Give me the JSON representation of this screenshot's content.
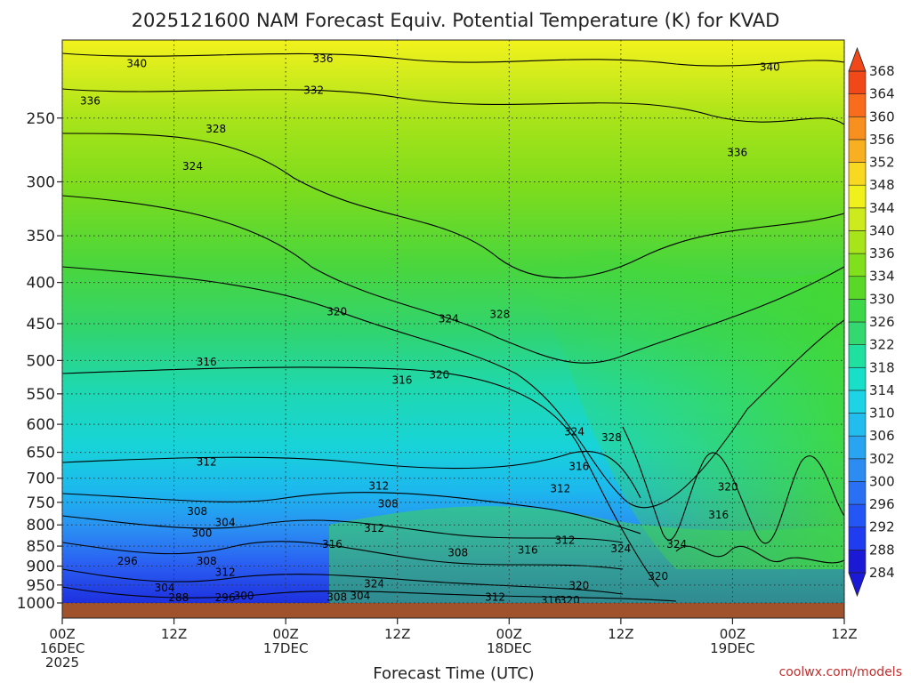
{
  "chart_data": {
    "type": "heatmap",
    "title": "2025121600 NAM Forecast Equiv. Potential Temperature (K) for KVAD",
    "xlabel": "Forecast Time (UTC)",
    "ylabel": "",
    "credit": "coolwx.com/models",
    "x_ticks": [
      {
        "hour": 0,
        "lines": [
          "00Z",
          "16DEC",
          "2025"
        ]
      },
      {
        "hour": 12,
        "lines": [
          "12Z"
        ]
      },
      {
        "hour": 24,
        "lines": [
          "00Z",
          "17DEC"
        ]
      },
      {
        "hour": 36,
        "lines": [
          "12Z"
        ]
      },
      {
        "hour": 48,
        "lines": [
          "00Z",
          "18DEC"
        ]
      },
      {
        "hour": 60,
        "lines": [
          "12Z"
        ]
      },
      {
        "hour": 72,
        "lines": [
          "00Z",
          "19DEC"
        ]
      },
      {
        "hour": 84,
        "lines": [
          "12Z"
        ]
      }
    ],
    "xlim": [
      0,
      84
    ],
    "y_ticks": [
      250,
      300,
      350,
      400,
      450,
      500,
      550,
      600,
      650,
      700,
      750,
      800,
      850,
      900,
      950,
      1000
    ],
    "ylim": [
      1000,
      200
    ],
    "y_scale": "log",
    "colorbar": {
      "levels": [
        284,
        288,
        292,
        296,
        300,
        302,
        306,
        310,
        314,
        318,
        322,
        326,
        330,
        334,
        336,
        340,
        344,
        348,
        352,
        356,
        360,
        364,
        368
      ],
      "colors": [
        "#1a1ad6",
        "#1f3cf0",
        "#2456f5",
        "#2a70f5",
        "#2c8cf2",
        "#28a4f0",
        "#22bcee",
        "#1cd4e6",
        "#18e0c8",
        "#20e0a0",
        "#34d870",
        "#3cd848",
        "#5ad828",
        "#80e01c",
        "#a8e41a",
        "#ccea1c",
        "#f0f01c",
        "#f8d820",
        "#f8b020",
        "#f89020",
        "#f86c1c",
        "#f04818"
      ]
    },
    "contour_labels": [
      {
        "text": "340",
        "hour": 8,
        "p": 214
      },
      {
        "text": "336",
        "hour": 28,
        "p": 211
      },
      {
        "text": "340",
        "hour": 76,
        "p": 216
      },
      {
        "text": "336",
        "hour": 3,
        "p": 238
      },
      {
        "text": "332",
        "hour": 27,
        "p": 231
      },
      {
        "text": "328",
        "hour": 16.5,
        "p": 258
      },
      {
        "text": "336",
        "hour": 72.5,
        "p": 276
      },
      {
        "text": "324",
        "hour": 14,
        "p": 287
      },
      {
        "text": "320",
        "hour": 29.5,
        "p": 435
      },
      {
        "text": "324",
        "hour": 41.5,
        "p": 444
      },
      {
        "text": "328",
        "hour": 47,
        "p": 438
      },
      {
        "text": "316",
        "hour": 15.5,
        "p": 502
      },
      {
        "text": "316",
        "hour": 36.5,
        "p": 529
      },
      {
        "text": "320",
        "hour": 40.5,
        "p": 521
      },
      {
        "text": "324",
        "hour": 55,
        "p": 613
      },
      {
        "text": "328",
        "hour": 59,
        "p": 623
      },
      {
        "text": "312",
        "hour": 15.5,
        "p": 668
      },
      {
        "text": "316",
        "hour": 55.5,
        "p": 677
      },
      {
        "text": "312",
        "hour": 34,
        "p": 716
      },
      {
        "text": "312",
        "hour": 53.5,
        "p": 721
      },
      {
        "text": "320",
        "hour": 71.5,
        "p": 718
      },
      {
        "text": "308",
        "hour": 14.5,
        "p": 770
      },
      {
        "text": "308",
        "hour": 35,
        "p": 753
      },
      {
        "text": "316",
        "hour": 70.5,
        "p": 777
      },
      {
        "text": "304",
        "hour": 17.5,
        "p": 794
      },
      {
        "text": "312",
        "hour": 33.5,
        "p": 808
      },
      {
        "text": "300",
        "hour": 15,
        "p": 819
      },
      {
        "text": "316",
        "hour": 29,
        "p": 846
      },
      {
        "text": "312",
        "hour": 54,
        "p": 836
      },
      {
        "text": "316",
        "hour": 50,
        "p": 860
      },
      {
        "text": "308",
        "hour": 42.5,
        "p": 866
      },
      {
        "text": "324",
        "hour": 60,
        "p": 856
      },
      {
        "text": "324",
        "hour": 66,
        "p": 846
      },
      {
        "text": "296",
        "hour": 7,
        "p": 887
      },
      {
        "text": "308",
        "hour": 15.5,
        "p": 887
      },
      {
        "text": "312",
        "hour": 17.5,
        "p": 916
      },
      {
        "text": "320",
        "hour": 64,
        "p": 927
      },
      {
        "text": "324",
        "hour": 33.5,
        "p": 947
      },
      {
        "text": "320",
        "hour": 55.5,
        "p": 952
      },
      {
        "text": "304",
        "hour": 11,
        "p": 958
      },
      {
        "text": "288",
        "hour": 12.5,
        "p": 985
      },
      {
        "text": "296",
        "hour": 17.5,
        "p": 985
      },
      {
        "text": "300",
        "hour": 19.5,
        "p": 980
      },
      {
        "text": "308",
        "hour": 29.5,
        "p": 983
      },
      {
        "text": "304",
        "hour": 32,
        "p": 980
      },
      {
        "text": "312",
        "hour": 46.5,
        "p": 983
      },
      {
        "text": "316",
        "hour": 52.5,
        "p": 992
      },
      {
        "text": "320",
        "hour": 54.5,
        "p": 992
      }
    ]
  }
}
